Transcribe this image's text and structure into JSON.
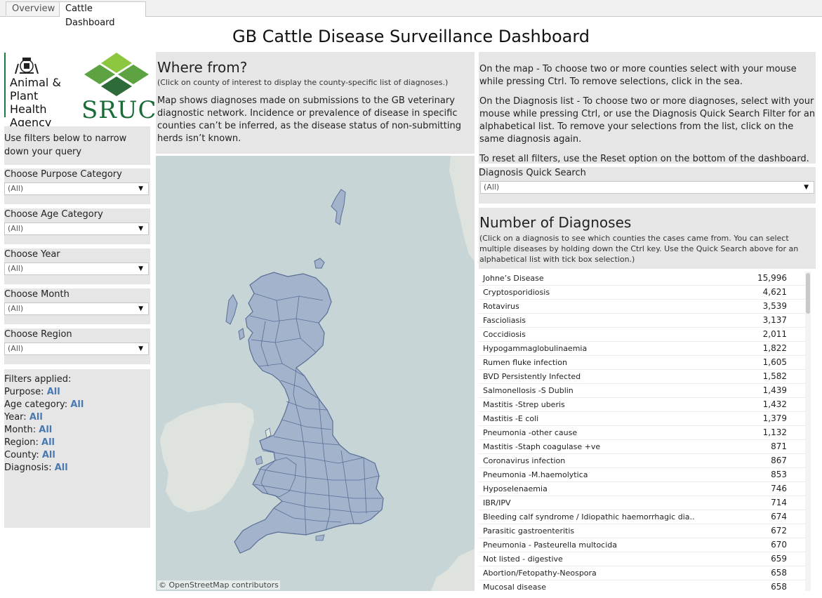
{
  "tabs": [
    {
      "label": "Overview"
    },
    {
      "label": "Cattle Dashboard"
    }
  ],
  "title": "GB Cattle Disease Surveillance Dashboard",
  "logos": {
    "aph_lines": [
      "Animal &",
      "Plant Health",
      "Agency"
    ],
    "sruc": "SRUC",
    "colors": {
      "sruc_green": "#1a6b38",
      "sruc_light": "#8dc63f"
    }
  },
  "left": {
    "hint": "Use filters below to narrow down your query",
    "filters": [
      {
        "label": "Choose Purpose Category",
        "value": "(All)"
      },
      {
        "label": "Choose Age Category",
        "value": "(All)"
      },
      {
        "label": "Choose Year",
        "value": "(All)"
      },
      {
        "label": "Choose Month",
        "value": "(All)"
      },
      {
        "label": "Choose Region",
        "value": "(All)"
      }
    ],
    "applied_title": "Filters applied:",
    "applied": [
      {
        "label": "Purpose:",
        "value": "All"
      },
      {
        "label": "Age category:",
        "value": "All"
      },
      {
        "label": "Year:",
        "value": "All"
      },
      {
        "label": "Month:",
        "value": "All"
      },
      {
        "label": "Region:",
        "value": "All"
      },
      {
        "label": "County:",
        "value": "All"
      },
      {
        "label": "Diagnosis:",
        "value": "All"
      }
    ]
  },
  "where": {
    "title": "Where from?",
    "sub": "(Click on county of interest to display the county-specific list of diagnoses.)",
    "body": "Map shows diagnoses made on submissions to the GB veterinary diagnostic network. Incidence or prevalence of disease in specific counties can’t be inferred, as the disease status of non-submitting herds isn’t known.",
    "attribution": "© OpenStreetMap contributors",
    "colors": {
      "sea": "#c7d5d6",
      "land": "#dfe3de",
      "counties": "#a3b3cc",
      "border": "#5a6f96"
    }
  },
  "instructions": {
    "p1": "On the map - To choose two or more counties select with your mouse while pressing Ctrl. To remove selections, click in the sea.",
    "p2": "On the Diagnosis list - To choose two or more diagnoses, select with your mouse while pressing Ctrl, or use the Diagnosis Quick Search Filter for an alphabetical list. To remove your selections from the list, click on the same diagnosis again.",
    "p3": "To reset all filters, use the Reset option on the bottom of the dashboard."
  },
  "quick_search": {
    "label": "Diagnosis Quick Search",
    "value": "(All)"
  },
  "diagnoses": {
    "title": "Number of Diagnoses",
    "sub": "(Click on a diagnosis to see which counties the cases came from. You can select multiple diseases by holding down the Ctrl key. Use the Quick Search above for an alphabetical list with tick box selection.)",
    "rows": [
      {
        "name": "Johne’s Disease",
        "count": "15,996"
      },
      {
        "name": "Cryptosporidiosis",
        "count": "4,621"
      },
      {
        "name": "Rotavirus",
        "count": "3,539"
      },
      {
        "name": "Fascioliasis",
        "count": "3,137"
      },
      {
        "name": "Coccidiosis",
        "count": "2,011"
      },
      {
        "name": "Hypogammaglobulinaemia",
        "count": "1,822"
      },
      {
        "name": "Rumen fluke infection",
        "count": "1,605"
      },
      {
        "name": "BVD Persistently Infected",
        "count": "1,582"
      },
      {
        "name": "Salmonellosis -S Dublin",
        "count": "1,439"
      },
      {
        "name": "Mastitis -Strep uberis",
        "count": "1,432"
      },
      {
        "name": "Mastitis -E coli",
        "count": "1,379"
      },
      {
        "name": "Pneumonia -other cause",
        "count": "1,132"
      },
      {
        "name": "Mastitis -Staph coagulase +ve",
        "count": "871"
      },
      {
        "name": "Coronavirus infection",
        "count": "867"
      },
      {
        "name": "Pneumonia -M.haemolytica",
        "count": "853"
      },
      {
        "name": "Hyposelenaemia",
        "count": "746"
      },
      {
        "name": "IBR/IPV",
        "count": "714"
      },
      {
        "name": "Bleeding calf syndrome / Idiopathic haemorrhagic dia..",
        "count": "674"
      },
      {
        "name": "Parasitic gastroenteritis",
        "count": "672"
      },
      {
        "name": "Pneumonia - Pasteurella multocida",
        "count": "670"
      },
      {
        "name": "Not listed - digestive",
        "count": "659"
      },
      {
        "name": "Abortion/Fetopathy-Neospora",
        "count": "658"
      },
      {
        "name": "Mucosal disease",
        "count": "658"
      }
    ]
  }
}
